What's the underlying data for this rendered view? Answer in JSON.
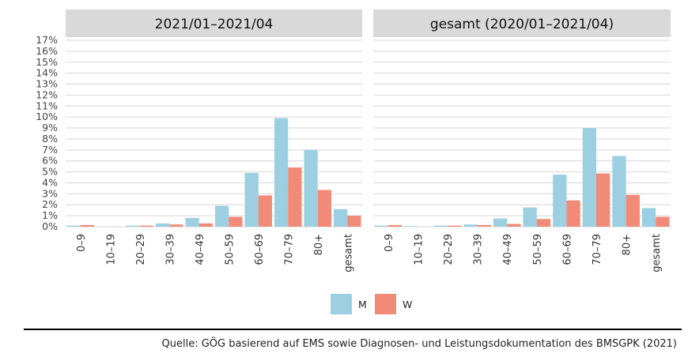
{
  "chart_data": {
    "type": "bar",
    "panels": [
      {
        "title": "2021/01–2021/04",
        "categories": [
          "0–9",
          "10–19",
          "20–29",
          "30–39",
          "40–49",
          "50–59",
          "60–69",
          "70–79",
          "80+",
          "gesamt"
        ],
        "series": [
          {
            "name": "M",
            "values": [
              0.1,
              0.0,
              0.1,
              0.3,
              0.8,
              1.9,
              4.9,
              9.9,
              7.0,
              1.6
            ]
          },
          {
            "name": "W",
            "values": [
              0.15,
              0.0,
              0.1,
              0.2,
              0.3,
              0.9,
              2.85,
              5.4,
              3.35,
              1.0
            ]
          }
        ]
      },
      {
        "title": "gesamt (2020/01–2021/04)",
        "categories": [
          "0–9",
          "10–19",
          "20–29",
          "30–39",
          "40–49",
          "50–59",
          "60–69",
          "70–79",
          "80+",
          "gesamt"
        ],
        "series": [
          {
            "name": "M",
            "values": [
              0.1,
              0.05,
              0.1,
              0.2,
              0.75,
              1.75,
              4.75,
              9.0,
              6.45,
              1.7
            ]
          },
          {
            "name": "W",
            "values": [
              0.15,
              0.0,
              0.1,
              0.15,
              0.25,
              0.7,
              2.4,
              4.85,
              2.9,
              0.9
            ]
          }
        ]
      }
    ],
    "y_ticks": [
      "0%",
      "1%",
      "2%",
      "3%",
      "4%",
      "5%",
      "6%",
      "7%",
      "8%",
      "9%",
      "10%",
      "11%",
      "12%",
      "13%",
      "14%",
      "15%",
      "16%",
      "17%"
    ],
    "ylim": [
      0,
      17
    ],
    "grid": true,
    "legend": {
      "position": "bottom",
      "entries": [
        "M",
        "W"
      ]
    },
    "colors": {
      "M": "#9ccfe2",
      "W": "#f28a78",
      "panel_header": "#d9d9d9",
      "grid": "#d6d6d6"
    }
  },
  "source": "Quelle: GÖG basierend auf EMS sowie Diagnosen- und Leistungsdokumentation des BMSGPK (2021)"
}
